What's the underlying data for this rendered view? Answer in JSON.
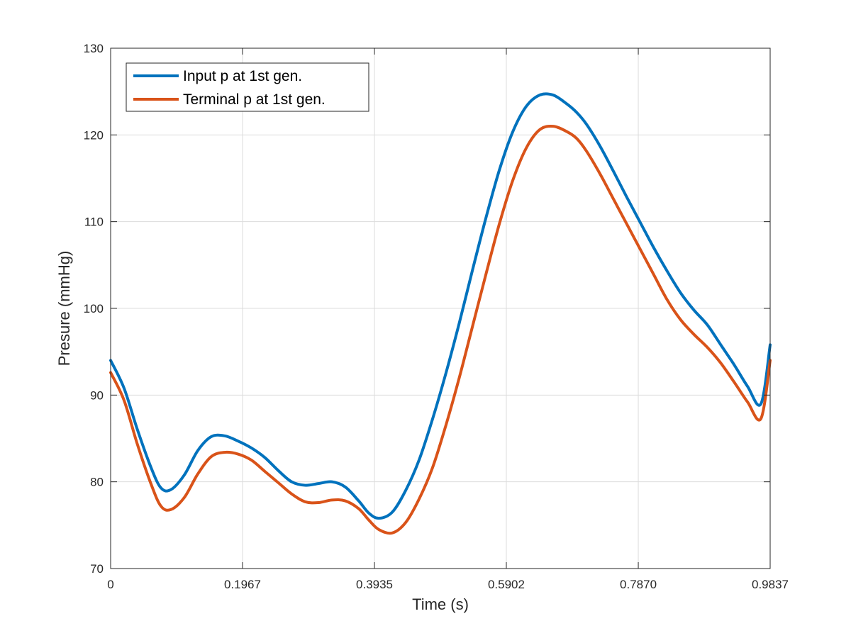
{
  "chart_data": {
    "type": "line",
    "xlabel": "Time (s)",
    "ylabel": "Presure (mmHg)",
    "xlim": [
      0,
      0.9837
    ],
    "ylim": [
      70,
      130
    ],
    "xticks": [
      0,
      0.1967,
      0.3935,
      0.5902,
      0.787,
      0.9837
    ],
    "xtick_labels": [
      "0",
      "0.1967",
      "0.3935",
      "0.5902",
      "0.7870",
      "0.9837"
    ],
    "yticks": [
      70,
      80,
      90,
      100,
      110,
      120,
      130
    ],
    "ytick_labels": [
      "70",
      "80",
      "90",
      "100",
      "110",
      "120",
      "130"
    ],
    "grid": true,
    "legend_position": "top-left",
    "series": [
      {
        "name": "Input p at 1st gen.",
        "color": "#0072BD",
        "x": [
          0,
          0.02,
          0.04,
          0.06,
          0.075,
          0.09,
          0.11,
          0.13,
          0.15,
          0.17,
          0.19,
          0.21,
          0.23,
          0.25,
          0.27,
          0.29,
          0.31,
          0.33,
          0.35,
          0.37,
          0.385,
          0.4,
          0.42,
          0.44,
          0.46,
          0.48,
          0.5,
          0.52,
          0.54,
          0.56,
          0.58,
          0.6,
          0.62,
          0.64,
          0.66,
          0.68,
          0.695,
          0.71,
          0.73,
          0.75,
          0.77,
          0.79,
          0.81,
          0.83,
          0.85,
          0.87,
          0.89,
          0.91,
          0.93,
          0.95,
          0.97,
          0.9837
        ],
        "y": [
          94.0,
          90.8,
          86.0,
          81.7,
          79.3,
          79.1,
          80.8,
          83.6,
          85.2,
          85.3,
          84.7,
          83.9,
          82.8,
          81.3,
          80.0,
          79.6,
          79.8,
          80.0,
          79.4,
          77.8,
          76.4,
          75.8,
          76.5,
          79.0,
          82.5,
          87.2,
          92.5,
          98.3,
          104.5,
          110.5,
          116.0,
          120.4,
          123.3,
          124.6,
          124.6,
          123.6,
          122.6,
          121.2,
          118.7,
          115.8,
          112.8,
          109.9,
          107.0,
          104.3,
          101.8,
          99.8,
          98.1,
          95.8,
          93.5,
          91.0,
          89.0,
          95.8
        ]
      },
      {
        "name": "Terminal p at 1st gen.",
        "color": "#D95319",
        "x": [
          0,
          0.02,
          0.04,
          0.06,
          0.075,
          0.09,
          0.11,
          0.13,
          0.15,
          0.17,
          0.19,
          0.21,
          0.23,
          0.25,
          0.27,
          0.29,
          0.31,
          0.33,
          0.35,
          0.37,
          0.385,
          0.4,
          0.42,
          0.44,
          0.46,
          0.48,
          0.5,
          0.52,
          0.54,
          0.56,
          0.58,
          0.6,
          0.62,
          0.64,
          0.66,
          0.68,
          0.695,
          0.71,
          0.73,
          0.75,
          0.77,
          0.79,
          0.81,
          0.83,
          0.85,
          0.87,
          0.89,
          0.91,
          0.93,
          0.95,
          0.97,
          0.9837
        ],
        "y": [
          92.6,
          89.4,
          84.3,
          79.8,
          77.2,
          76.8,
          78.2,
          80.9,
          82.9,
          83.4,
          83.2,
          82.5,
          81.2,
          79.9,
          78.6,
          77.7,
          77.6,
          77.9,
          77.8,
          76.9,
          75.6,
          74.5,
          74.1,
          75.3,
          78.0,
          81.6,
          86.5,
          92.0,
          98.0,
          104.0,
          109.8,
          114.8,
          118.5,
          120.6,
          121.0,
          120.4,
          119.6,
          118.1,
          115.5,
          112.6,
          109.7,
          106.8,
          103.9,
          101.0,
          98.7,
          97.0,
          95.5,
          93.7,
          91.5,
          89.2,
          87.3,
          94.0
        ]
      }
    ]
  }
}
